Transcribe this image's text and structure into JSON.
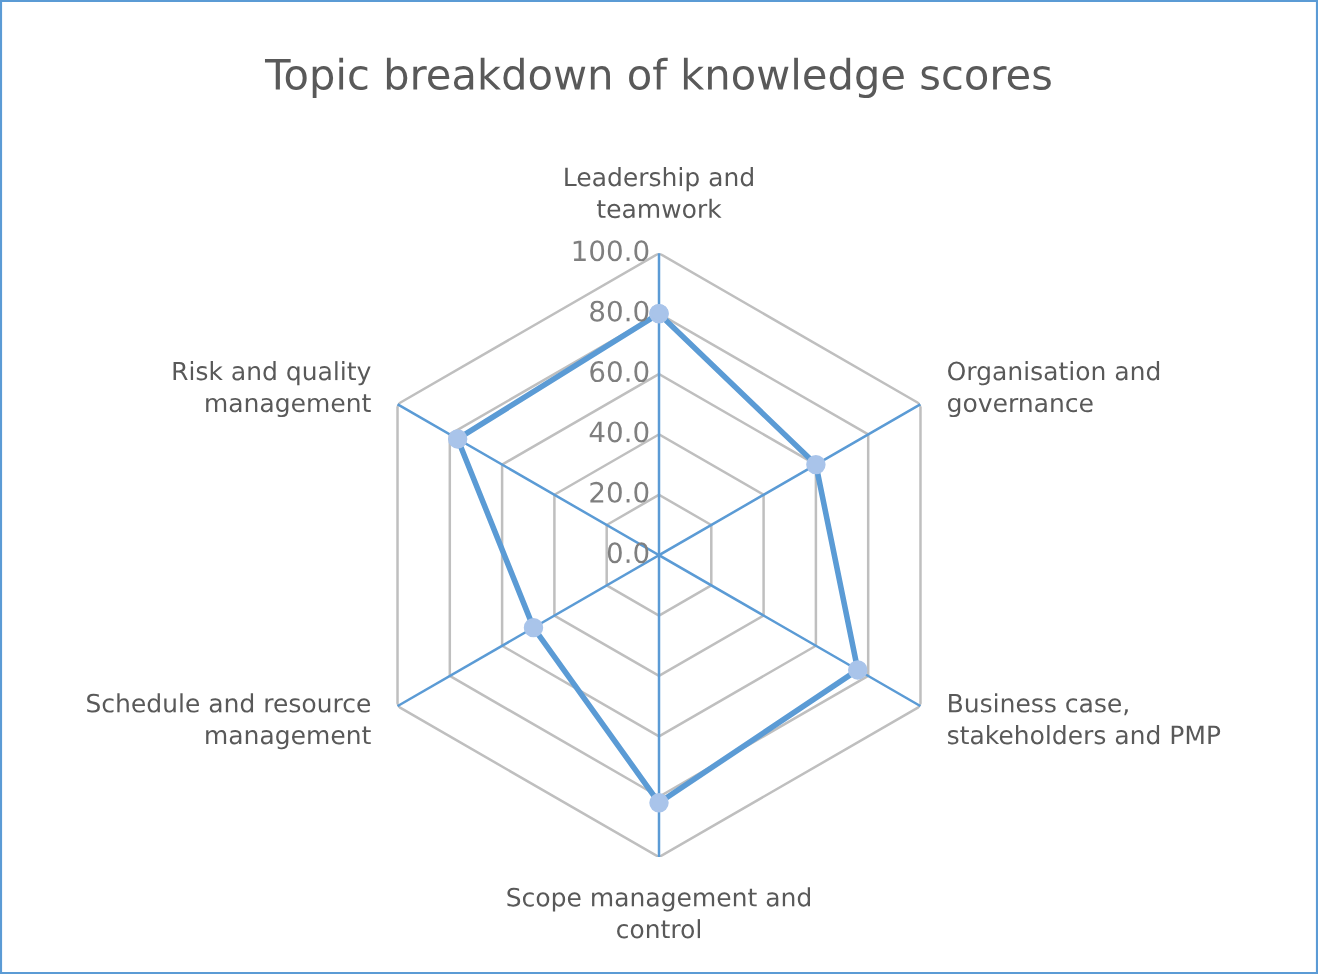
{
  "chart_data": {
    "type": "radar",
    "title": "Topic breakdown of knowledge scores",
    "categories": [
      "Leadership and\nteamwork",
      "Organisation and\ngovernance",
      "Business case,\nstakeholders and PMP",
      "Scope management and\ncontrol",
      "Schedule and resource\nmanagement",
      "Risk and quality\nmanagement"
    ],
    "series": [
      {
        "color": "#5b9bd5",
        "values": [
          80,
          60,
          76,
          82,
          48,
          77
        ]
      }
    ],
    "ylim": [
      0,
      100
    ],
    "yticks": [
      {
        "value": 0,
        "label": "0.0"
      },
      {
        "value": 20,
        "label": "20.0"
      },
      {
        "value": 40,
        "label": "40.0"
      },
      {
        "value": 60,
        "label": "60.0"
      },
      {
        "value": 80,
        "label": "80.0"
      },
      {
        "value": 100,
        "label": "100.0"
      }
    ],
    "grid": true,
    "marker": "circle",
    "line_style": "solid"
  }
}
